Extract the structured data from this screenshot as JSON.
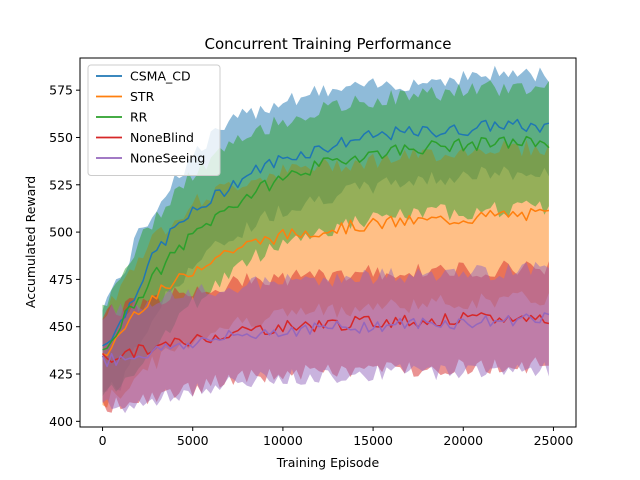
{
  "chart_data": {
    "type": "line",
    "title": "Concurrent Training Performance",
    "xlabel": "Training Episode",
    "ylabel": "Accumulated Reward",
    "xlim": [
      -1250,
      26250
    ],
    "ylim": [
      397,
      592
    ],
    "xticks": [
      0,
      5000,
      10000,
      15000,
      20000,
      25000
    ],
    "yticks": [
      400,
      425,
      450,
      475,
      500,
      525,
      550,
      575
    ],
    "grid": false,
    "legend_position": "top-left",
    "x_range": [
      0,
      24750
    ],
    "num_points": 100,
    "series": [
      {
        "name": "CSMA_CD",
        "color": "#1f77b4",
        "anchors_x": [
          0,
          1000,
          2000,
          3000,
          4000,
          5000,
          6000,
          7000,
          8000,
          9000,
          10000,
          12000,
          14000,
          16000,
          18000,
          20000,
          22000,
          24750
        ],
        "mean": [
          440,
          452,
          472,
          490,
          502,
          510,
          517,
          524,
          530,
          535,
          539,
          544,
          549,
          552,
          553,
          554,
          557,
          555
        ],
        "lower": [
          415,
          420,
          440,
          458,
          472,
          482,
          490,
          496,
          502,
          508,
          512,
          518,
          522,
          526,
          528,
          530,
          531,
          530
        ],
        "upper": [
          462,
          476,
          498,
          514,
          528,
          540,
          550,
          557,
          562,
          566,
          570,
          574,
          576,
          578,
          580,
          582,
          584,
          583
        ]
      },
      {
        "name": "STR",
        "color": "#ff7f0e",
        "anchors_x": [
          0,
          1000,
          2000,
          3000,
          4000,
          5000,
          6000,
          7000,
          8000,
          9000,
          10000,
          12000,
          14000,
          16000,
          18000,
          20000,
          22000,
          24750
        ],
        "mean": [
          433,
          447,
          460,
          467,
          473,
          480,
          486,
          490,
          493,
          496,
          498,
          501,
          503,
          505,
          506,
          507,
          509,
          509
        ],
        "lower": [
          410,
          415,
          425,
          432,
          438,
          443,
          448,
          451,
          453,
          455,
          457,
          458,
          460,
          461,
          462,
          463,
          464,
          465
        ],
        "upper": [
          455,
          472,
          487,
          498,
          508,
          515,
          520,
          524,
          527,
          530,
          532,
          535,
          537,
          539,
          541,
          543,
          545,
          544
        ]
      },
      {
        "name": "RR",
        "color": "#2ca02c",
        "anchors_x": [
          0,
          1000,
          2000,
          3000,
          4000,
          5000,
          6000,
          7000,
          8000,
          9000,
          10000,
          12000,
          14000,
          16000,
          18000,
          20000,
          22000,
          24750
        ],
        "mean": [
          438,
          452,
          466,
          478,
          489,
          498,
          506,
          513,
          519,
          524,
          529,
          535,
          540,
          543,
          545,
          546,
          547,
          548
        ],
        "lower": [
          413,
          420,
          430,
          442,
          452,
          462,
          470,
          478,
          484,
          490,
          495,
          500,
          505,
          508,
          510,
          511,
          512,
          513
        ],
        "upper": [
          460,
          476,
          494,
          508,
          520,
          530,
          538,
          545,
          550,
          555,
          559,
          564,
          568,
          571,
          573,
          575,
          576,
          577
        ]
      },
      {
        "name": "NoneBlind",
        "color": "#d62728",
        "anchors_x": [
          0,
          2000,
          4000,
          6000,
          8000,
          10000,
          12000,
          14000,
          16000,
          18000,
          20000,
          22000,
          24750
        ],
        "mean": [
          433,
          437,
          441,
          445,
          448,
          450,
          451,
          452,
          453,
          453,
          454,
          454,
          455
        ],
        "lower": [
          408,
          410,
          415,
          420,
          423,
          425,
          426,
          427,
          428,
          428,
          429,
          429,
          430
        ],
        "upper": [
          458,
          462,
          467,
          471,
          474,
          476,
          477,
          478,
          479,
          479,
          480,
          481,
          482
        ]
      },
      {
        "name": "NoneSeeing",
        "color": "#9467bd",
        "anchors_x": [
          0,
          2000,
          4000,
          6000,
          8000,
          10000,
          12000,
          14000,
          16000,
          18000,
          20000,
          22000,
          24750
        ],
        "mean": [
          432,
          435,
          440,
          443,
          446,
          448,
          449,
          450,
          451,
          452,
          452,
          453,
          456
        ],
        "lower": [
          407,
          409,
          414,
          418,
          421,
          423,
          424,
          425,
          426,
          426,
          427,
          427,
          428
        ],
        "upper": [
          457,
          461,
          466,
          469,
          472,
          474,
          475,
          476,
          477,
          477,
          478,
          479,
          482
        ]
      }
    ]
  }
}
